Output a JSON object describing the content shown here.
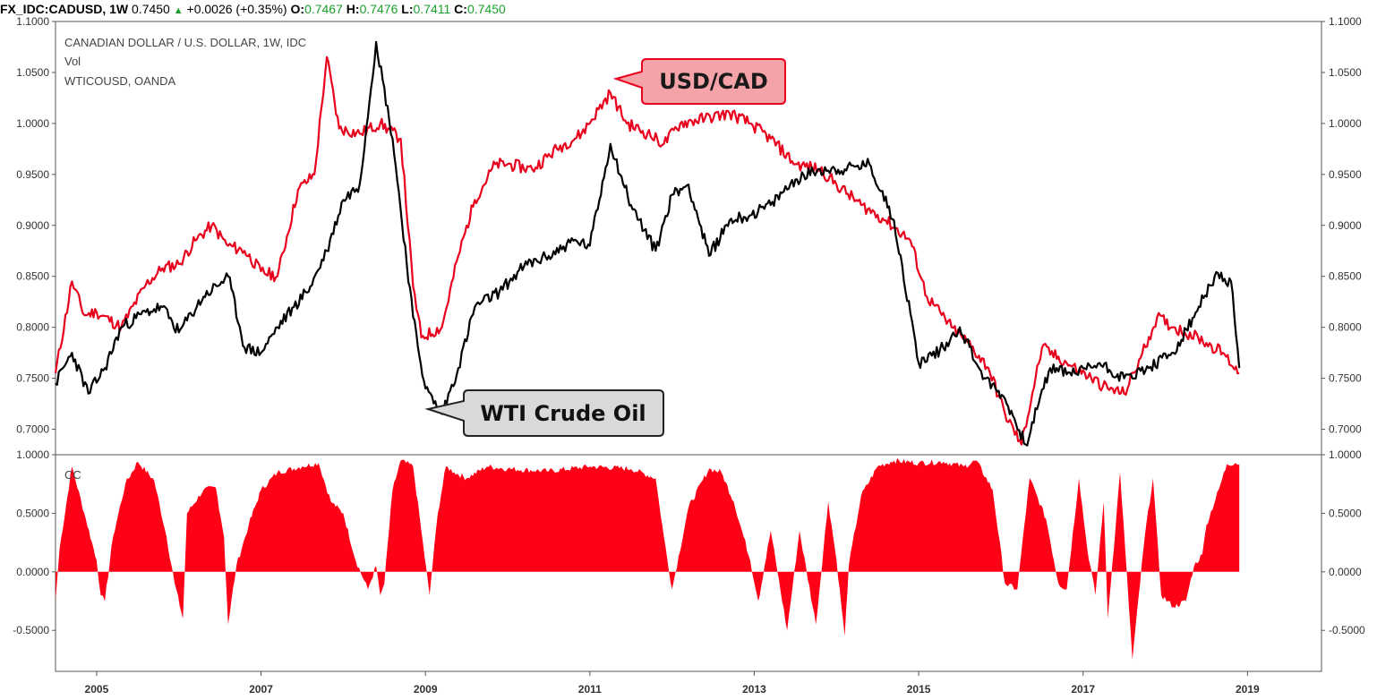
{
  "header": {
    "symbol": "FX_IDC:CADUSD, 1W",
    "last": "0.7450",
    "change": "+0.0026 (+0.35%)",
    "o_label": "O:",
    "o_value": "0.7467",
    "h_label": "H:",
    "h_value": "0.7476",
    "l_label": "L:",
    "l_value": "0.7411",
    "c_label": "C:",
    "c_value": "0.7450"
  },
  "legend": {
    "line1": "CANADIAN DOLLAR / U.S. DOLLAR, 1W, IDC",
    "line2": "Vol",
    "line3": "WTICOUSD, OANDA",
    "lower": "CC"
  },
  "callouts": {
    "usd_cad": "USD/CAD",
    "wti": "WTI Crude Oil"
  },
  "colors": {
    "cadusd_line": "#e8001c",
    "wti_line": "#000000",
    "correlation_fill": "#ff0017",
    "usdcad_callout_bg": "#f4a3a8",
    "wti_callout_bg": "#d9d9d9"
  },
  "chart_data": [
    {
      "type": "line",
      "ylim": [
        0.675,
        1.1
      ],
      "yticks": [
        "1.1000",
        "1.0500",
        "1.0000",
        "0.9500",
        "0.9000",
        "0.8500",
        "0.8000",
        "0.7500",
        "0.7000"
      ],
      "x_ticks": [
        "2005",
        "2007",
        "2009",
        "2011",
        "2013",
        "2015",
        "2017",
        "2019"
      ],
      "xlim": [
        2004.5,
        2019.9
      ],
      "series": [
        {
          "name": "USD/CAD",
          "x": [
            2004.5,
            2004.7,
            2004.85,
            2005.0,
            2005.3,
            2005.6,
            2005.8,
            2006.0,
            2006.2,
            2006.4,
            2006.6,
            2006.8,
            2007.0,
            2007.2,
            2007.45,
            2007.65,
            2007.8,
            2007.95,
            2008.2,
            2008.45,
            2008.7,
            2008.85,
            2008.95,
            2009.2,
            2009.4,
            2009.6,
            2009.85,
            2010.0,
            2010.3,
            2010.6,
            2010.9,
            2011.25,
            2011.45,
            2011.7,
            2011.9,
            2012.1,
            2012.4,
            2012.7,
            2012.95,
            2013.2,
            2013.5,
            2013.8,
            2014.0,
            2014.3,
            2014.6,
            2014.9,
            2015.1,
            2015.4,
            2015.6,
            2015.85,
            2016.05,
            2016.25,
            2016.5,
            2016.8,
            2017.1,
            2017.3,
            2017.5,
            2017.7,
            2017.9,
            2018.1,
            2018.4,
            2018.7,
            2018.9
          ],
          "values": [
            0.755,
            0.845,
            0.812,
            0.815,
            0.8,
            0.842,
            0.858,
            0.862,
            0.885,
            0.9,
            0.88,
            0.875,
            0.855,
            0.85,
            0.935,
            0.95,
            1.065,
            0.995,
            0.99,
            1.0,
            0.985,
            0.84,
            0.79,
            0.8,
            0.87,
            0.925,
            0.96,
            0.96,
            0.955,
            0.975,
            0.99,
            1.03,
            1.0,
            0.99,
            0.98,
            1.0,
            1.005,
            1.01,
            1.0,
            0.985,
            0.96,
            0.955,
            0.94,
            0.92,
            0.905,
            0.885,
            0.83,
            0.8,
            0.785,
            0.76,
            0.715,
            0.685,
            0.78,
            0.765,
            0.75,
            0.74,
            0.735,
            0.77,
            0.81,
            0.8,
            0.79,
            0.775,
            0.755
          ]
        },
        {
          "name": "WTI Crude Oil",
          "x": [
            2004.5,
            2004.7,
            2004.9,
            2005.1,
            2005.3,
            2005.6,
            2005.8,
            2006.0,
            2006.3,
            2006.6,
            2006.8,
            2007.0,
            2007.2,
            2007.4,
            2007.6,
            2007.8,
            2008.0,
            2008.2,
            2008.4,
            2008.6,
            2008.85,
            2009.0,
            2009.2,
            2009.4,
            2009.6,
            2009.9,
            2010.2,
            2010.5,
            2010.8,
            2011.0,
            2011.25,
            2011.5,
            2011.8,
            2012.0,
            2012.2,
            2012.45,
            2012.7,
            2012.95,
            2013.2,
            2013.5,
            2013.8,
            2014.1,
            2014.4,
            2014.7,
            2015.0,
            2015.3,
            2015.5,
            2015.8,
            2016.05,
            2016.3,
            2016.6,
            2016.9,
            2017.2,
            2017.5,
            2017.8,
            2018.1,
            2018.35,
            2018.6,
            2018.8,
            2018.9
          ],
          "values": [
            0.745,
            0.775,
            0.735,
            0.76,
            0.8,
            0.815,
            0.82,
            0.795,
            0.83,
            0.85,
            0.78,
            0.775,
            0.8,
            0.82,
            0.84,
            0.875,
            0.925,
            0.94,
            1.08,
            0.985,
            0.81,
            0.74,
            0.715,
            0.76,
            0.82,
            0.835,
            0.86,
            0.87,
            0.885,
            0.88,
            0.98,
            0.92,
            0.875,
            0.93,
            0.94,
            0.87,
            0.905,
            0.91,
            0.92,
            0.945,
            0.955,
            0.955,
            0.96,
            0.905,
            0.765,
            0.78,
            0.8,
            0.75,
            0.73,
            0.685,
            0.76,
            0.755,
            0.765,
            0.75,
            0.76,
            0.775,
            0.81,
            0.85,
            0.845,
            0.76
          ]
        }
      ]
    },
    {
      "type": "area",
      "ylim": [
        -0.85,
        1.0
      ],
      "yticks": [
        "1.0000",
        "0.5000",
        "0.0000",
        "-0.5000"
      ],
      "series": [
        {
          "name": "CC",
          "x": [
            2004.5,
            2004.55,
            2004.7,
            2004.85,
            2005.0,
            2005.05,
            2005.1,
            2005.2,
            2005.35,
            2005.5,
            2005.7,
            2005.85,
            2005.95,
            2006.05,
            2006.1,
            2006.3,
            2006.45,
            2006.55,
            2006.6,
            2006.7,
            2006.85,
            2007.0,
            2007.2,
            2007.5,
            2007.7,
            2007.85,
            2008.0,
            2008.15,
            2008.3,
            2008.4,
            2008.45,
            2008.5,
            2008.6,
            2008.7,
            2008.85,
            2008.95,
            2009.05,
            2009.15,
            2009.25,
            2009.35,
            2009.5,
            2009.75,
            2010.0,
            2010.5,
            2011.0,
            2011.5,
            2011.8,
            2011.9,
            2012.0,
            2012.2,
            2012.45,
            2012.6,
            2012.75,
            2012.95,
            2013.05,
            2013.2,
            2013.4,
            2013.55,
            2013.75,
            2013.9,
            2014.0,
            2014.1,
            2014.15,
            2014.3,
            2014.5,
            2014.7,
            2015.0,
            2015.3,
            2015.55,
            2015.7,
            2015.9,
            2016.05,
            2016.2,
            2016.35,
            2016.55,
            2016.7,
            2016.8,
            2016.95,
            2017.05,
            2017.15,
            2017.25,
            2017.3,
            2017.45,
            2017.6,
            2017.75,
            2017.85,
            2017.95,
            2018.1,
            2018.25,
            2018.35,
            2018.45,
            2018.5,
            2018.65,
            2018.75,
            2018.85,
            2018.9
          ],
          "values": [
            -0.25,
            0.2,
            0.9,
            0.5,
            0.1,
            -0.2,
            -0.25,
            0.3,
            0.75,
            0.94,
            0.78,
            0.3,
            -0.1,
            -0.4,
            0.5,
            0.7,
            0.72,
            0.3,
            -0.45,
            0.05,
            0.4,
            0.7,
            0.85,
            0.9,
            0.93,
            0.6,
            0.5,
            0.1,
            -0.15,
            0.05,
            -0.2,
            -0.1,
            0.7,
            0.95,
            0.9,
            0.35,
            -0.2,
            0.5,
            0.9,
            0.85,
            0.8,
            0.9,
            0.88,
            0.86,
            0.9,
            0.88,
            0.8,
            0.3,
            -0.15,
            0.55,
            0.88,
            0.85,
            0.6,
            0.1,
            -0.25,
            0.35,
            -0.5,
            0.35,
            -0.45,
            0.6,
            0.1,
            -0.55,
            0.05,
            0.65,
            0.9,
            0.95,
            0.93,
            0.94,
            0.9,
            0.95,
            0.7,
            -0.1,
            -0.15,
            0.8,
            0.45,
            -0.1,
            -0.15,
            0.8,
            0.2,
            -0.2,
            0.6,
            -0.4,
            0.85,
            -0.75,
            0.3,
            0.8,
            -0.2,
            -0.3,
            -0.25,
            0.05,
            0.15,
            0.4,
            0.7,
            0.92,
            0.93,
            0.92
          ]
        }
      ]
    }
  ]
}
